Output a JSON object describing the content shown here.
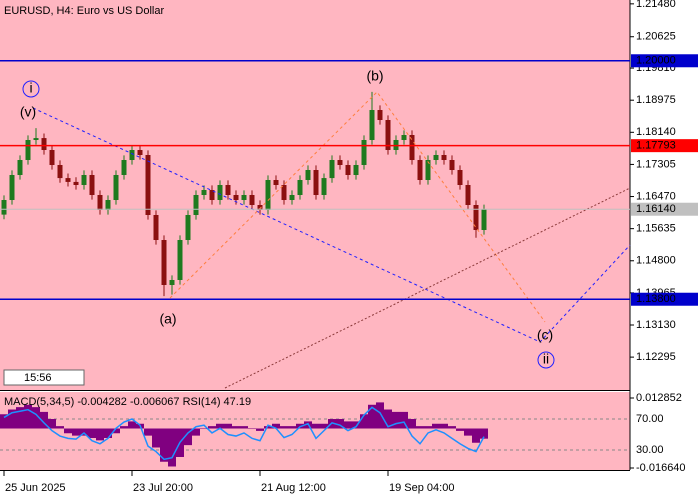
{
  "chart_data": [
    {
      "type": "candlestick",
      "title": "EURUSD, H4:  Euro vs US Dollar",
      "categories": [
        "25 Jun 2025",
        null,
        null,
        null,
        null,
        null,
        null,
        null,
        null,
        null,
        null,
        null,
        null,
        null,
        null,
        null,
        "23 Jul 20:00",
        null,
        null,
        null,
        null,
        null,
        null,
        null,
        null,
        null,
        null,
        null,
        null,
        null,
        null,
        null,
        "21 Aug 12:00",
        null,
        null,
        null,
        null,
        null,
        null,
        null,
        null,
        null,
        null,
        null,
        null,
        null,
        null,
        null,
        "19 Sep 04:00",
        null,
        null,
        null,
        null,
        null,
        null,
        null,
        null,
        null,
        null,
        null,
        null
      ],
      "open": [
        1.16,
        1.1638,
        1.1703,
        1.1742,
        1.1794,
        1.1799,
        1.1768,
        1.1729,
        1.1695,
        1.1685,
        1.1677,
        1.1703,
        1.1651,
        1.1612,
        1.1638,
        1.1703,
        1.1742,
        1.1768,
        1.1755,
        1.1599,
        1.1534,
        1.1417,
        1.143,
        1.1534,
        1.1599,
        1.1651,
        1.1664,
        1.1638,
        1.1677,
        1.1651,
        1.1638,
        1.1651,
        1.1625,
        1.1612,
        1.169,
        1.1677,
        1.1638,
        1.1651,
        1.169,
        1.1716,
        1.1651,
        1.1695,
        1.1742,
        1.1729,
        1.1703,
        1.1729,
        1.1794,
        1.1872,
        1.1846,
        1.1768,
        1.1794,
        1.1807,
        1.1742,
        1.169,
        1.1742,
        1.1755,
        1.1742,
        1.1716,
        1.1677,
        1.1625,
        1.156
      ],
      "high": [
        1.165,
        1.1715,
        1.1754,
        1.1806,
        1.1825,
        1.1811,
        1.178,
        1.1741,
        1.1707,
        1.1697,
        1.1715,
        1.1715,
        1.1663,
        1.165,
        1.1715,
        1.1754,
        1.178,
        1.178,
        1.1767,
        1.1611,
        1.1546,
        1.1442,
        1.1546,
        1.1611,
        1.1663,
        1.1676,
        1.1676,
        1.1689,
        1.1689,
        1.1663,
        1.1663,
        1.1663,
        1.1637,
        1.1702,
        1.1702,
        1.1689,
        1.1663,
        1.1702,
        1.1728,
        1.1728,
        1.1707,
        1.1754,
        1.1754,
        1.1741,
        1.1741,
        1.1806,
        1.1919,
        1.1884,
        1.1858,
        1.1806,
        1.1819,
        1.1819,
        1.1754,
        1.1754,
        1.1767,
        1.1767,
        1.1754,
        1.1728,
        1.1689,
        1.1637,
        1.1626
      ],
      "low": [
        1.1588,
        1.1626,
        1.1691,
        1.173,
        1.1782,
        1.1756,
        1.1717,
        1.1683,
        1.1673,
        1.1665,
        1.1665,
        1.1639,
        1.16,
        1.16,
        1.1626,
        1.1691,
        1.173,
        1.1743,
        1.1587,
        1.1522,
        1.1388,
        1.1392,
        1.1418,
        1.1522,
        1.1587,
        1.1639,
        1.1626,
        1.1626,
        1.1639,
        1.1626,
        1.1626,
        1.1613,
        1.16,
        1.16,
        1.1665,
        1.1626,
        1.1626,
        1.1639,
        1.1678,
        1.1639,
        1.1639,
        1.1683,
        1.1717,
        1.1691,
        1.1691,
        1.1717,
        1.1782,
        1.1834,
        1.1756,
        1.1756,
        1.1782,
        1.173,
        1.1678,
        1.1678,
        1.173,
        1.173,
        1.1704,
        1.1665,
        1.1613,
        1.154,
        1.1548
      ],
      "close": [
        1.1638,
        1.1703,
        1.1742,
        1.1794,
        1.1799,
        1.1768,
        1.1729,
        1.1695,
        1.1685,
        1.1677,
        1.1703,
        1.1651,
        1.1612,
        1.1638,
        1.1703,
        1.1742,
        1.1768,
        1.1755,
        1.1599,
        1.1534,
        1.1417,
        1.143,
        1.1534,
        1.1599,
        1.1651,
        1.1664,
        1.1638,
        1.1677,
        1.1651,
        1.1638,
        1.1651,
        1.1625,
        1.1612,
        1.169,
        1.1677,
        1.1638,
        1.1651,
        1.169,
        1.1716,
        1.1651,
        1.1695,
        1.1742,
        1.1729,
        1.1703,
        1.1729,
        1.1794,
        1.1872,
        1.1846,
        1.1768,
        1.1794,
        1.1807,
        1.1742,
        1.169,
        1.1742,
        1.1755,
        1.1742,
        1.1716,
        1.1677,
        1.1625,
        1.156,
        1.1614
      ],
      "up_color": "#1f7a1f",
      "down_color": "#8b1010",
      "ylim": [
        1.1144,
        1.2158
      ],
      "yticks": [
        {
          "value": 1.2148,
          "label": "1.21480"
        },
        1.20625,
        {
          "value": 1.1981,
          "label": "1.19810"
        },
        1.18975,
        {
          "value": 1.1814,
          "label": "1.18140"
        },
        1.17305,
        {
          "value": 1.1647,
          "label": "1.16470"
        },
        1.15635,
        {
          "value": 1.148,
          "label": "1.14800"
        },
        1.13965,
        {
          "value": 1.1313,
          "label": "1.13130"
        },
        1.12295
      ],
      "levels": [
        {
          "value": 1.2,
          "label": "1.20000",
          "color": "#0000cc"
        },
        {
          "value": 1.17793,
          "label": "1.17793",
          "color": "#ff0000"
        },
        {
          "value": 1.1614,
          "label": "1.16140",
          "color": "#c0c0c0"
        },
        {
          "value": 1.138,
          "label": "1.13800",
          "color": "#0000cc"
        }
      ],
      "annotations": [
        "(v)",
        "i",
        "(a)",
        "(b)",
        "(c)",
        "ii"
      ],
      "timer": "15:56"
    },
    {
      "type": "indicator",
      "series": [
        {
          "name": "MACD(5,34,5)",
          "color": "#800080",
          "values": [
            0.006,
            0.008,
            0.009,
            0.01,
            0.009,
            0.007,
            0.004,
            0.001,
            -0.002,
            -0.003,
            -0.003,
            -0.004,
            -0.005,
            -0.004,
            -0.002,
            0.001,
            0.003,
            0.002,
            -0.003,
            -0.008,
            -0.014,
            -0.016,
            -0.012,
            -0.007,
            -0.003,
            0.0,
            0.001,
            0.002,
            0.002,
            0.001,
            0.001,
            0.0,
            -0.001,
            0.001,
            0.002,
            0.001,
            0.001,
            0.002,
            0.003,
            0.002,
            0.002,
            0.004,
            0.004,
            0.003,
            0.003,
            0.006,
            0.01,
            0.011,
            0.008,
            0.007,
            0.007,
            0.004,
            0.001,
            0.001,
            0.002,
            0.002,
            0.001,
            -0.001,
            -0.003,
            -0.006,
            -0.004282
          ],
          "signal": -0.006067
        },
        {
          "name": "RSI(14)",
          "color": "#1e90ff",
          "axis": "y2",
          "values": [
            72,
            78,
            80,
            82,
            76,
            65,
            55,
            48,
            45,
            44,
            52,
            42,
            38,
            45,
            58,
            66,
            70,
            62,
            35,
            28,
            18,
            20,
            40,
            52,
            60,
            62,
            52,
            58,
            50,
            48,
            52,
            45,
            42,
            62,
            58,
            46,
            50,
            60,
            64,
            45,
            55,
            65,
            62,
            55,
            60,
            75,
            85,
            78,
            60,
            64,
            66,
            48,
            38,
            52,
            56,
            52,
            45,
            38,
            32,
            28,
            47.19
          ]
        }
      ],
      "ylim": [
        -0.01748,
        0.01496
      ],
      "yticks": [
        0.012852,
        {
          "value": -0.01664,
          "label": "-0.016640"
        }
      ],
      "y2lim": [
        4.2,
        103.5
      ],
      "y2ticks": [
        {
          "value": 70,
          "label": "70.00"
        },
        {
          "value": 30,
          "label": "30.00"
        }
      ]
    }
  ]
}
